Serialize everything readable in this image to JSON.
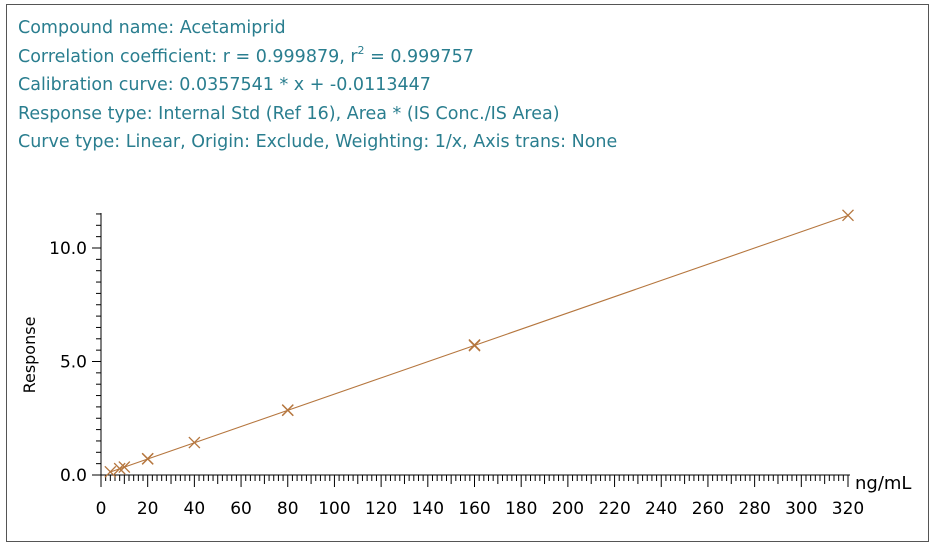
{
  "info": {
    "compound_label": "Compound name: ",
    "compound_value": "Acetamiprid",
    "correlation_prefix": "Correlation coefficient: r = 0.999879, r",
    "correlation_sup": "2",
    "correlation_suffix": " = 0.999757",
    "calibration": "Calibration curve: 0.0357541 * x + -0.0113447",
    "response_type": "Response type: Internal Std (Ref 16), Area * (IS Conc./IS Area)",
    "curve_type": "Curve type: Linear, Origin: Exclude, Weighting: 1/x, Axis trans: None"
  },
  "colors": {
    "text_info": "#2a7e8f",
    "series": "#b5763e",
    "axis": "#000000"
  },
  "chart_data": {
    "type": "scatter",
    "title": "",
    "xlabel": "ng/mL",
    "ylabel": "Response",
    "xlim": [
      0,
      320
    ],
    "ylim": [
      0,
      12
    ],
    "x_ticks": [
      0,
      20,
      40,
      60,
      80,
      100,
      120,
      140,
      160,
      180,
      200,
      220,
      240,
      260,
      280,
      300,
      320
    ],
    "y_ticks": [
      0,
      5,
      10
    ],
    "y_tick_labels": [
      "0.0",
      "5.0",
      "10.0"
    ],
    "grid": false,
    "fit_line": {
      "slope": 0.0357541,
      "intercept": -0.0113447,
      "x_range": [
        4,
        320
      ]
    },
    "points": [
      {
        "x": 4,
        "y": 0.14
      },
      {
        "x": 8,
        "y": 0.28
      },
      {
        "x": 10,
        "y": 0.35
      },
      {
        "x": 20,
        "y": 0.71
      },
      {
        "x": 20,
        "y": 0.72
      },
      {
        "x": 40,
        "y": 1.43
      },
      {
        "x": 80,
        "y": 2.85
      },
      {
        "x": 80,
        "y": 2.86
      },
      {
        "x": 160,
        "y": 5.7
      },
      {
        "x": 160,
        "y": 5.73
      },
      {
        "x": 320,
        "y": 11.44
      }
    ]
  }
}
